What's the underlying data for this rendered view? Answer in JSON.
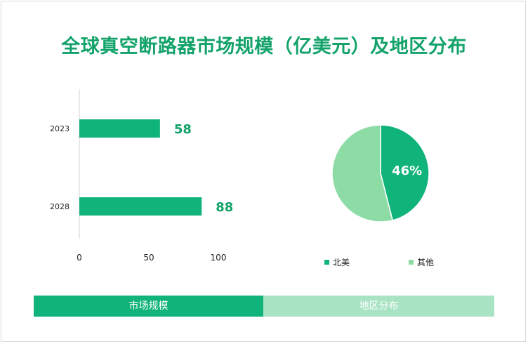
{
  "title": "全球真空断路器市场规模（亿美元）及地区分布",
  "tabs": {
    "left_label": "市场规模",
    "right_label": "地区分布"
  },
  "chart_data": [
    {
      "type": "bar",
      "orientation": "horizontal",
      "categories": [
        "2023",
        "2028"
      ],
      "values": [
        58,
        88
      ],
      "data_labels": [
        "58",
        "88"
      ],
      "xlim": [
        0,
        100
      ],
      "x_ticks": [
        "0",
        "50",
        "100"
      ],
      "grid": false,
      "bar_color": "#10b379"
    },
    {
      "type": "pie",
      "slices": [
        {
          "label": "北美",
          "value": 46,
          "color": "#10b379"
        },
        {
          "label": "其他",
          "value": 54,
          "color": "#8ddca6"
        }
      ],
      "data_labels": [
        "46%"
      ],
      "legend_position": "bottom"
    }
  ]
}
